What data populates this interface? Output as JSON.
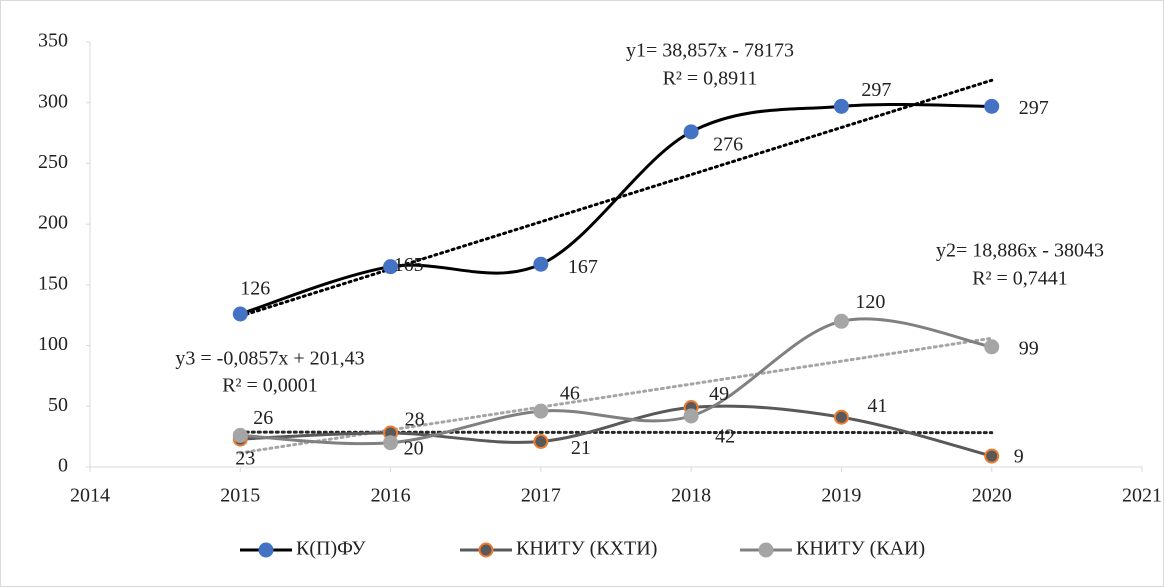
{
  "chart_data": {
    "type": "line",
    "x": [
      2015,
      2016,
      2017,
      2018,
      2019,
      2020
    ],
    "xlim": [
      2014,
      2021
    ],
    "xticks": [
      2014,
      2015,
      2016,
      2017,
      2018,
      2019,
      2020,
      2021
    ],
    "ylim": [
      0,
      350
    ],
    "yticks": [
      0,
      50,
      100,
      150,
      200,
      250,
      300,
      350
    ],
    "grid": false,
    "smooth": true,
    "legend": "bottom",
    "series": [
      {
        "name": "К(П)ФУ",
        "color": "#000000",
        "marker_color": "#4472c4",
        "marker_edge": "#4472c4",
        "trend_color": "#000000",
        "values": [
          126,
          165,
          167,
          276,
          297,
          297
        ]
      },
      {
        "name": "КНИТУ (КХТИ)",
        "color": "#595959",
        "marker_color": "#595959",
        "marker_edge": "#ed7d31",
        "trend_color": "#262626",
        "values": [
          23,
          28,
          21,
          49,
          41,
          9
        ]
      },
      {
        "name": "КНИТУ (КАИ)",
        "color": "#808080",
        "marker_color": "#a5a5a5",
        "marker_edge": "#a5a5a5",
        "trend_color": "#a5a5a5",
        "values": [
          26,
          20,
          46,
          42,
          120,
          99
        ]
      }
    ],
    "annotations": [
      "y1= 38,857x - 78173",
      "R² = 0,8911",
      "y2= 18,886x - 38043",
      "R² = 0,7441",
      "y3 = -0,0857x + 201,43",
      "R² = 0,0001"
    ]
  }
}
